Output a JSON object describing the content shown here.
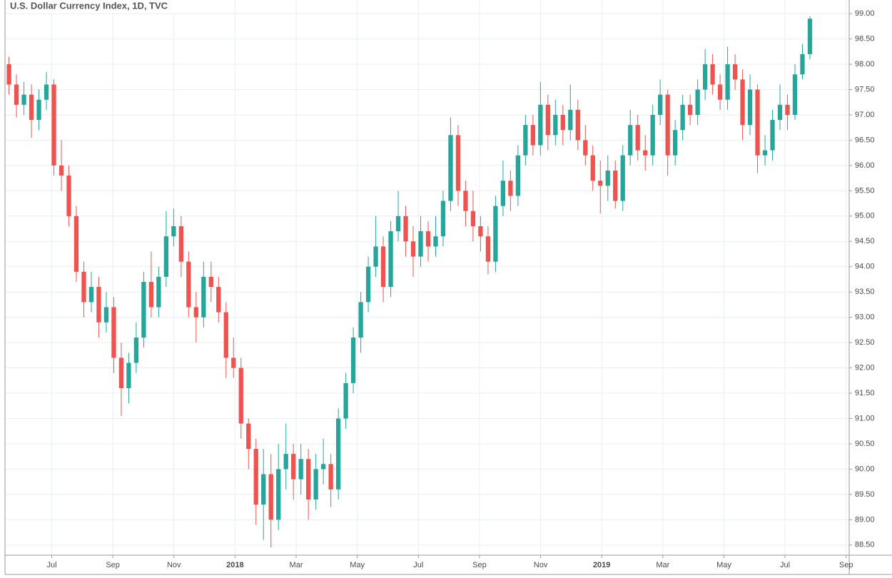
{
  "chart_data": {
    "type": "candlestick",
    "title": "U.S. Dollar Currency Index, 1D, TVC",
    "up_color": "#26a69a",
    "down_color": "#ef5350",
    "grid": true,
    "xlim": [
      4.47,
      32.1
    ],
    "xticks": [
      {
        "value": 6,
        "label": "Jul"
      },
      {
        "value": 8,
        "label": "Sep"
      },
      {
        "value": 10,
        "label": "Nov"
      },
      {
        "value": 12,
        "label": "2018"
      },
      {
        "value": 14,
        "label": "Mar"
      },
      {
        "value": 16,
        "label": "May"
      },
      {
        "value": 18,
        "label": "Jul"
      },
      {
        "value": 20,
        "label": "Sep"
      },
      {
        "value": 22,
        "label": "Nov"
      },
      {
        "value": 24,
        "label": "2019"
      },
      {
        "value": 26,
        "label": "Mar"
      },
      {
        "value": 28,
        "label": "May"
      },
      {
        "value": 30,
        "label": "Jul"
      },
      {
        "value": 32,
        "label": "Sep"
      }
    ],
    "ylim": [
      88.3,
      99.27
    ],
    "yticks": [
      {
        "value": 88.5,
        "label": "88.50"
      },
      {
        "value": 89,
        "label": "89.00"
      },
      {
        "value": 89.5,
        "label": "89.50"
      },
      {
        "value": 90,
        "label": "90.00"
      },
      {
        "value": 90.5,
        "label": "90.50"
      },
      {
        "value": 91,
        "label": "91.00"
      },
      {
        "value": 91.5,
        "label": "91.50"
      },
      {
        "value": 92,
        "label": "92.00"
      },
      {
        "value": 92.5,
        "label": "92.50"
      },
      {
        "value": 93,
        "label": "93.00"
      },
      {
        "value": 93.5,
        "label": "93.50"
      },
      {
        "value": 94,
        "label": "94.00"
      },
      {
        "value": 94.5,
        "label": "94.50"
      },
      {
        "value": 95,
        "label": "95.00"
      },
      {
        "value": 95.5,
        "label": "95.50"
      },
      {
        "value": 96,
        "label": "96.00"
      },
      {
        "value": 96.5,
        "label": "96.50"
      },
      {
        "value": 97,
        "label": "97.00"
      },
      {
        "value": 97.5,
        "label": "97.50"
      },
      {
        "value": 98,
        "label": "98.00"
      },
      {
        "value": 98.5,
        "label": "98.50"
      },
      {
        "value": 99,
        "label": "99.00"
      }
    ],
    "x": [
      4.6,
      4.845,
      5.09,
      5.335,
      5.58,
      5.825,
      6.07,
      6.315,
      6.56,
      6.805,
      7.05,
      7.295,
      7.54,
      7.785,
      8.03,
      8.275,
      8.52,
      8.765,
      9.01,
      9.255,
      9.5,
      9.745,
      9.99,
      10.235,
      10.48,
      10.725,
      10.97,
      11.215,
      11.46,
      11.705,
      11.95,
      12.195,
      12.44,
      12.685,
      12.93,
      13.175,
      13.42,
      13.665,
      13.91,
      14.155,
      14.4,
      14.645,
      14.89,
      15.135,
      15.38,
      15.625,
      15.87,
      16.115,
      16.36,
      16.605,
      16.85,
      17.095,
      17.34,
      17.585,
      17.83,
      18.075,
      18.32,
      18.565,
      18.81,
      19.055,
      19.3,
      19.545,
      19.79,
      20.035,
      20.28,
      20.525,
      20.77,
      21.015,
      21.26,
      21.505,
      21.75,
      21.995,
      22.24,
      22.485,
      22.73,
      22.975,
      23.22,
      23.465,
      23.71,
      23.955,
      24.2,
      24.445,
      24.69,
      24.935,
      25.18,
      25.425,
      25.67,
      25.915,
      26.16,
      26.405,
      26.65,
      26.895,
      27.14,
      27.385,
      27.63,
      27.875,
      28.12,
      28.365,
      28.61,
      28.855,
      29.1,
      29.345,
      29.59,
      29.835,
      30.08,
      30.325,
      30.57,
      30.815
    ],
    "open": [
      98.0,
      97.6,
      97.2,
      97.4,
      96.9,
      97.3,
      97.6,
      96.0,
      95.8,
      95.0,
      93.9,
      93.3,
      93.6,
      92.9,
      93.2,
      92.2,
      91.6,
      92.1,
      92.6,
      93.7,
      93.2,
      93.8,
      94.6,
      94.8,
      94.1,
      93.2,
      93.0,
      93.8,
      93.6,
      93.1,
      92.2,
      92.0,
      90.9,
      90.4,
      89.3,
      89.9,
      89.0,
      90.0,
      90.3,
      89.8,
      90.2,
      89.4,
      90.0,
      90.1,
      89.6,
      91.0,
      91.7,
      92.6,
      93.3,
      94.0,
      94.4,
      93.6,
      94.7,
      95.0,
      94.5,
      94.2,
      94.7,
      94.4,
      94.6,
      95.3,
      96.6,
      95.5,
      95.1,
      94.8,
      94.6,
      94.1,
      95.2,
      95.7,
      95.4,
      96.2,
      96.8,
      96.4,
      97.2,
      96.6,
      97.0,
      96.7,
      97.1,
      96.5,
      96.2,
      95.7,
      95.6,
      95.9,
      95.3,
      96.2,
      96.8,
      96.3,
      96.2,
      97.0,
      97.4,
      96.2,
      96.7,
      97.2,
      97.0,
      97.5,
      98.0,
      97.6,
      97.3,
      98.0,
      97.7,
      96.8,
      97.5,
      96.2,
      96.3,
      96.9,
      97.2,
      97.0,
      97.8,
      98.2
    ],
    "high": [
      98.15,
      97.8,
      97.65,
      97.6,
      97.5,
      97.85,
      97.7,
      96.5,
      96.0,
      95.2,
      94.1,
      93.9,
      93.8,
      93.5,
      93.4,
      92.5,
      92.3,
      92.9,
      93.9,
      94.3,
      94.0,
      95.1,
      95.15,
      95.0,
      94.3,
      93.5,
      94.1,
      94.1,
      93.8,
      93.3,
      92.6,
      92.2,
      91.0,
      90.6,
      90.4,
      90.3,
      90.5,
      90.9,
      90.5,
      90.5,
      90.4,
      90.3,
      90.6,
      90.3,
      91.2,
      91.9,
      92.8,
      93.5,
      94.2,
      95.0,
      94.6,
      94.9,
      95.5,
      95.2,
      94.8,
      95.0,
      94.9,
      95.0,
      95.5,
      96.95,
      96.8,
      95.7,
      95.5,
      95.0,
      94.8,
      95.4,
      96.1,
      95.9,
      96.4,
      97.0,
      97.0,
      97.65,
      97.4,
      97.3,
      97.2,
      97.6,
      97.3,
      96.8,
      96.4,
      96.1,
      96.2,
      96.1,
      96.4,
      97.1,
      97.0,
      96.6,
      97.2,
      97.7,
      97.5,
      96.9,
      97.4,
      97.4,
      97.7,
      98.3,
      98.2,
      97.8,
      98.35,
      98.2,
      97.9,
      97.8,
      97.6,
      96.6,
      97.1,
      97.6,
      97.4,
      98.0,
      98.4,
      98.95
    ],
    "low": [
      97.4,
      96.95,
      97.0,
      96.55,
      96.7,
      97.1,
      95.8,
      95.5,
      94.8,
      93.7,
      93.0,
      93.1,
      92.6,
      92.7,
      91.9,
      91.05,
      91.3,
      91.9,
      92.4,
      93.0,
      93.0,
      93.6,
      94.4,
      93.8,
      93.0,
      92.5,
      92.8,
      93.3,
      92.9,
      91.8,
      91.8,
      90.6,
      90.0,
      88.9,
      88.6,
      88.45,
      88.8,
      89.6,
      89.4,
      89.5,
      89.0,
      89.2,
      89.7,
      89.25,
      89.4,
      90.8,
      91.5,
      92.3,
      93.1,
      93.8,
      93.3,
      93.4,
      94.5,
      94.2,
      93.8,
      94.0,
      94.1,
      94.2,
      94.4,
      95.1,
      95.2,
      94.8,
      94.5,
      94.3,
      93.85,
      93.9,
      95.0,
      95.1,
      95.2,
      96.0,
      96.2,
      96.2,
      96.3,
      96.4,
      96.4,
      96.5,
      96.3,
      96.0,
      95.5,
      95.05,
      95.3,
      95.15,
      95.1,
      96.0,
      96.1,
      95.9,
      96.0,
      96.8,
      95.8,
      96.0,
      96.5,
      96.8,
      96.8,
      97.3,
      97.4,
      97.1,
      97.1,
      97.5,
      96.5,
      96.6,
      95.85,
      96.0,
      96.1,
      96.7,
      96.7,
      96.9,
      97.7,
      98.1
    ],
    "close": [
      97.6,
      97.2,
      97.4,
      96.9,
      97.3,
      97.6,
      96.0,
      95.8,
      95.0,
      93.9,
      93.3,
      93.6,
      92.9,
      93.2,
      92.2,
      91.6,
      92.1,
      92.6,
      93.7,
      93.2,
      93.8,
      94.6,
      94.8,
      94.1,
      93.2,
      93.0,
      93.8,
      93.6,
      93.1,
      92.2,
      92.0,
      90.9,
      90.4,
      89.3,
      89.9,
      89.0,
      90.0,
      90.3,
      89.8,
      90.2,
      89.4,
      90.0,
      90.1,
      89.6,
      91.0,
      91.7,
      92.6,
      93.3,
      94.0,
      94.4,
      93.6,
      94.7,
      95.0,
      94.5,
      94.2,
      94.7,
      94.4,
      94.6,
      95.3,
      96.6,
      95.5,
      95.1,
      94.8,
      94.6,
      94.1,
      95.2,
      95.7,
      95.4,
      96.2,
      96.8,
      96.4,
      97.2,
      96.6,
      97.0,
      96.7,
      97.1,
      96.5,
      96.2,
      95.7,
      95.6,
      95.9,
      95.3,
      96.2,
      96.8,
      96.3,
      96.2,
      97.0,
      97.4,
      96.2,
      96.7,
      97.2,
      97.0,
      97.5,
      98.0,
      97.6,
      97.3,
      98.0,
      97.7,
      96.8,
      97.5,
      96.2,
      96.3,
      96.9,
      97.2,
      97.0,
      97.8,
      98.2,
      98.9
    ]
  }
}
